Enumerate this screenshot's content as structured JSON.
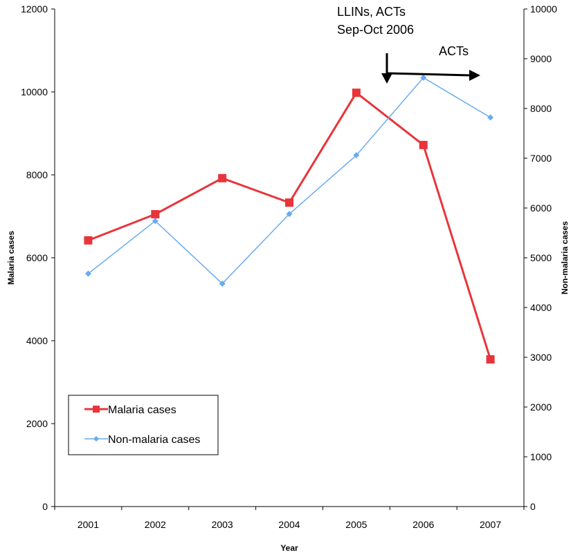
{
  "chart_data": {
    "type": "line",
    "categories": [
      "2001",
      "2002",
      "2003",
      "2004",
      "2005",
      "2006",
      "2007"
    ],
    "xlabel": "Year",
    "ylabel_left": "Malaria cases",
    "ylabel_right": "Non-malaria cases",
    "ylim_left": [
      0,
      12000
    ],
    "yticks_left": [
      0,
      2000,
      4000,
      6000,
      8000,
      10000,
      12000
    ],
    "ylim_right": [
      0,
      10000
    ],
    "yticks_right": [
      0,
      1000,
      2000,
      3000,
      4000,
      5000,
      6000,
      7000,
      8000,
      9000,
      10000
    ],
    "grid": false,
    "legend_position": "bottom-left",
    "series": [
      {
        "name": "Malaria cases",
        "axis": "left",
        "color": "#e8343a",
        "marker": "square",
        "values": [
          6420,
          7050,
          7920,
          7330,
          9980,
          8720,
          3550
        ]
      },
      {
        "name": "Non-malaria cases",
        "axis": "right",
        "color": "#6aaaf0",
        "marker": "diamond",
        "values": [
          4680,
          5740,
          4480,
          5880,
          7060,
          8620,
          7820
        ]
      }
    ],
    "annotations": [
      {
        "lines": [
          "LLINs, ACTs",
          "Sep-Oct 2006"
        ]
      },
      {
        "lines": [
          "ACTs"
        ]
      }
    ]
  }
}
